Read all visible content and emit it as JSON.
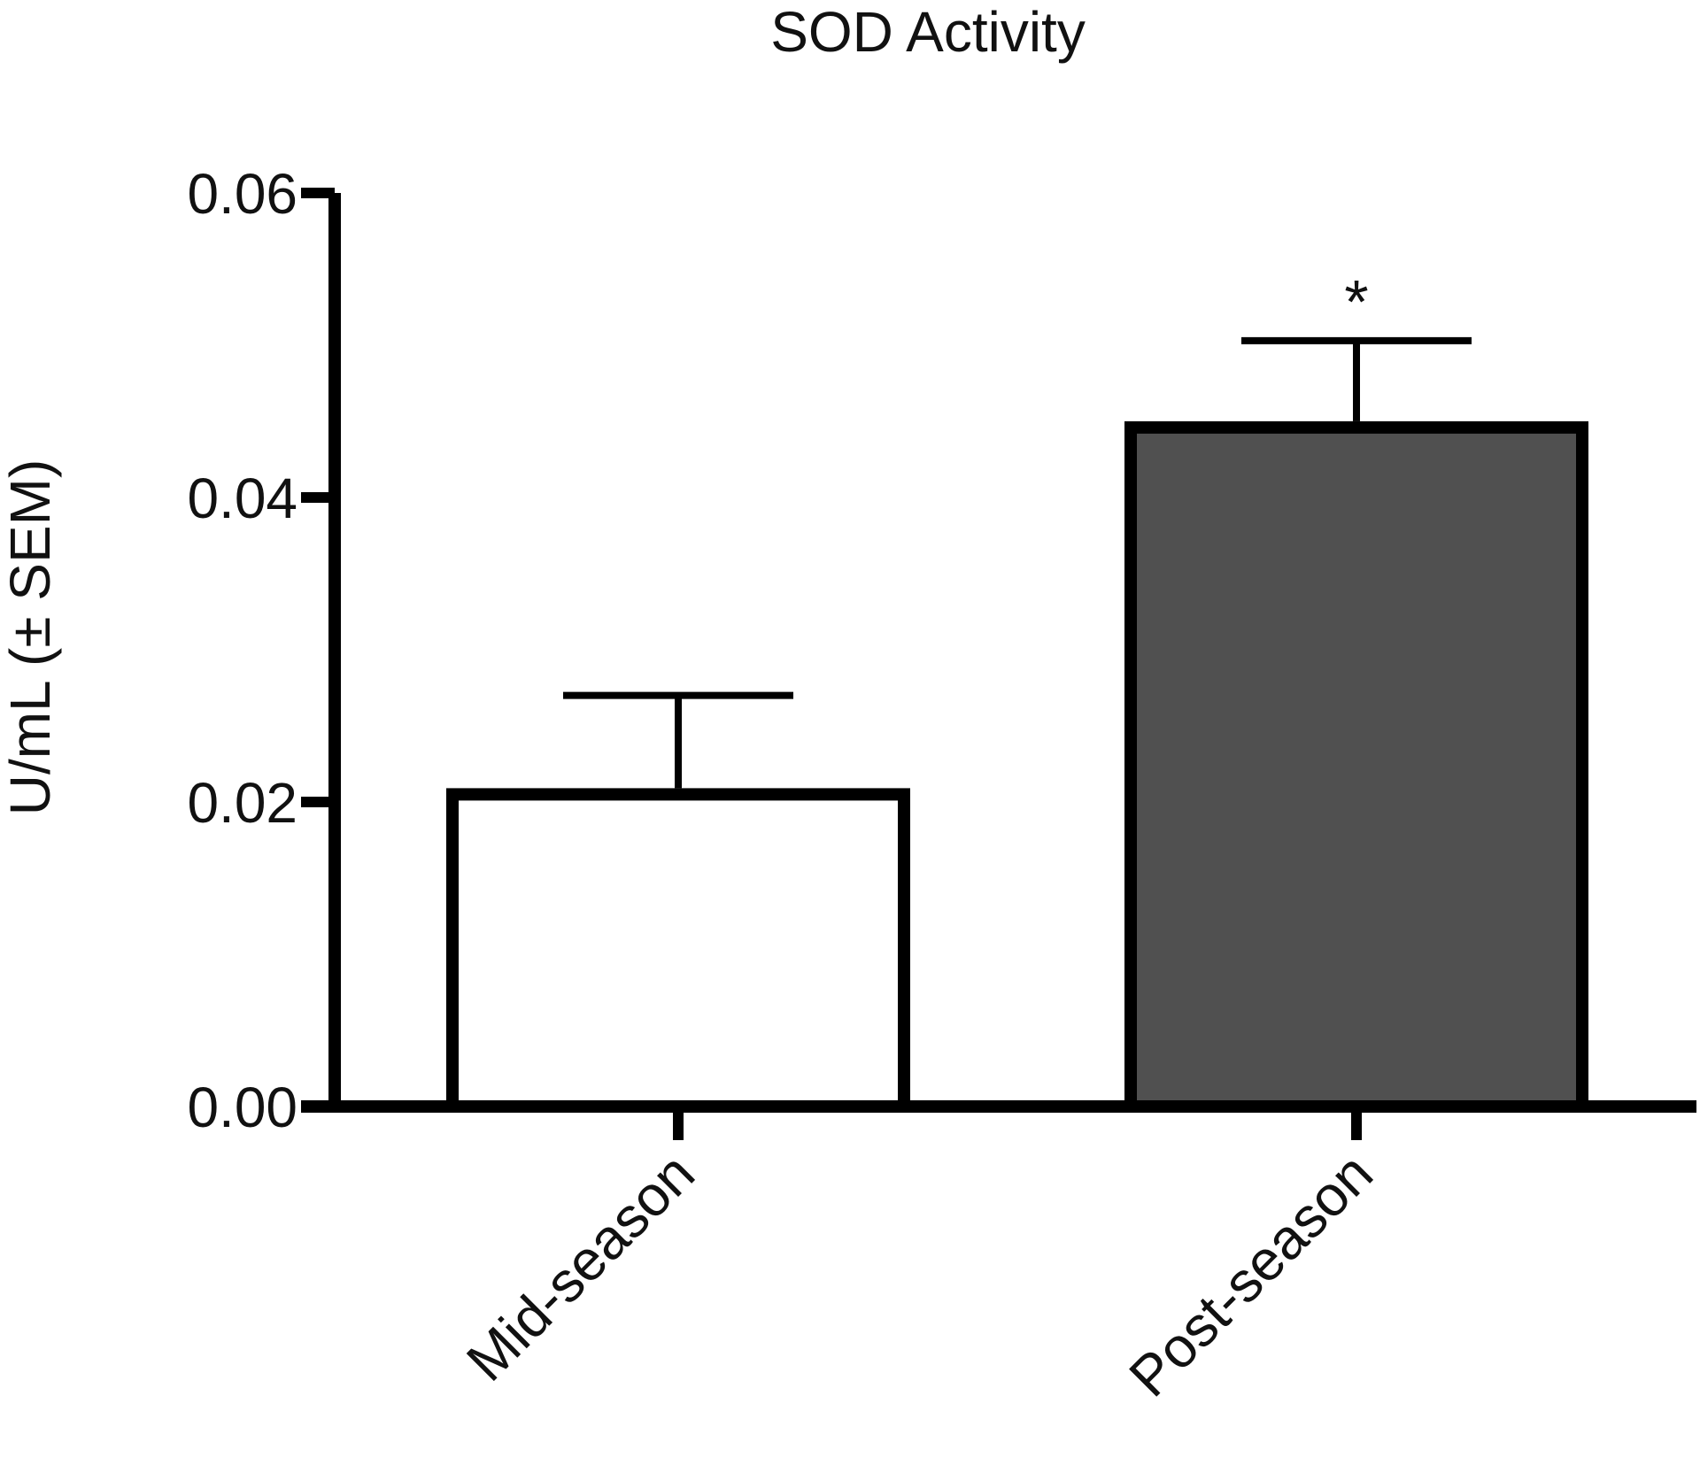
{
  "chart_data": {
    "type": "bar",
    "title": "SOD Activity",
    "xlabel": "",
    "ylabel": "U/mL (± SEM)",
    "ylim": [
      0,
      0.06
    ],
    "yticks": [
      "0.00",
      "0.02",
      "0.04",
      "0.06"
    ],
    "ytick_values": [
      0,
      0.02,
      0.04,
      0.06
    ],
    "categories": [
      "Mid-season",
      "Post-season"
    ],
    "values": [
      0.0205,
      0.0446
    ],
    "errors": [
      0.0065,
      0.0057
    ],
    "annotations": [
      "",
      "*"
    ],
    "colors": [
      "#ffffff",
      "#505050"
    ],
    "edge_color": "#000000",
    "grid": false,
    "legend": "none"
  }
}
